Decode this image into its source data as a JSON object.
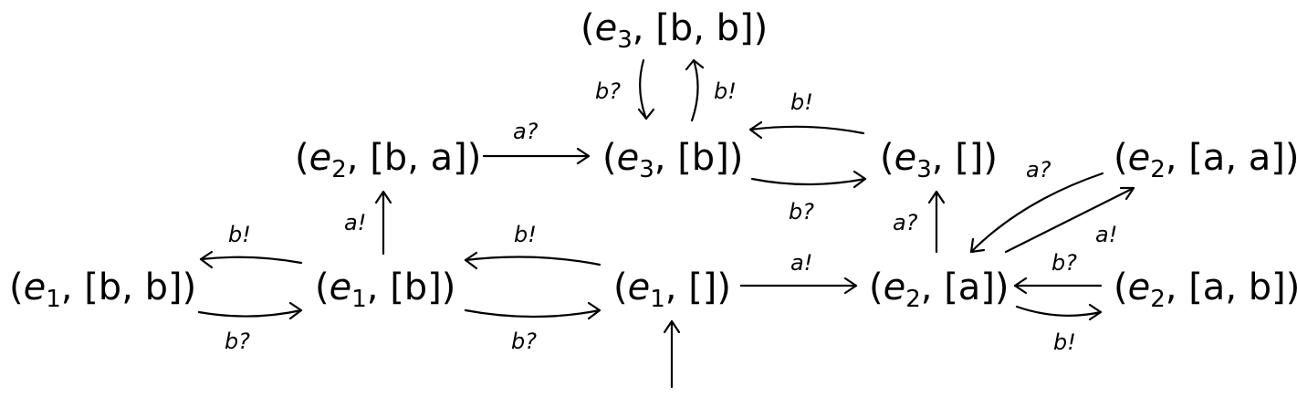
{
  "nodes": [
    {
      "id": "e1-bb",
      "e": "e",
      "sub": "1",
      "rest": ", [b, b])"
    },
    {
      "id": "e1-b",
      "e": "e",
      "sub": "1",
      "rest": ", [b])"
    },
    {
      "id": "e1-empty",
      "e": "e",
      "sub": "1",
      "rest": ", [])"
    },
    {
      "id": "e2-ba",
      "e": "e",
      "sub": "2",
      "rest": ", [b, a])"
    },
    {
      "id": "e3-b",
      "e": "e",
      "sub": "3",
      "rest": ", [b])"
    },
    {
      "id": "e3-bb",
      "e": "e",
      "sub": "3",
      "rest": ", [b, b])"
    },
    {
      "id": "e3-empty",
      "e": "e",
      "sub": "3",
      "rest": ", [])"
    },
    {
      "id": "e2-a",
      "e": "e",
      "sub": "2",
      "rest": ", [a])"
    },
    {
      "id": "e2-aa",
      "e": "e",
      "sub": "2",
      "rest": ", [a, a])"
    },
    {
      "id": "e2-ab",
      "e": "e",
      "sub": "2",
      "rest": ", [a, b])"
    }
  ],
  "edges": [
    {
      "id": "e1b-to-e1bb",
      "label": "b!"
    },
    {
      "id": "e1bb-to-e1b",
      "label": "b?"
    },
    {
      "id": "e1empty-to-e1b",
      "label": "b!"
    },
    {
      "id": "e1b-to-e1empty",
      "label": "b?"
    },
    {
      "id": "e1b-to-e2ba",
      "label": "a!"
    },
    {
      "id": "e2ba-to-e3b",
      "label": "a?"
    },
    {
      "id": "e3bb-to-e3b",
      "label": "b?"
    },
    {
      "id": "e3b-to-e3bb",
      "label": "b!"
    },
    {
      "id": "e3empty-to-e3b",
      "label": "b!"
    },
    {
      "id": "e3b-to-e3empty",
      "label": "b?"
    },
    {
      "id": "e1empty-to-e2a",
      "label": "a!"
    },
    {
      "id": "e2a-to-e3empty",
      "label": "a?"
    },
    {
      "id": "e2aa-to-e2a",
      "label": "a?"
    },
    {
      "id": "e2a-to-e2aa",
      "label": "a!"
    },
    {
      "id": "e2ab-to-e2a",
      "label": "b?"
    },
    {
      "id": "e2a-to-e2ab",
      "label": "b!"
    },
    {
      "id": "initial-arrow",
      "label": ""
    }
  ]
}
